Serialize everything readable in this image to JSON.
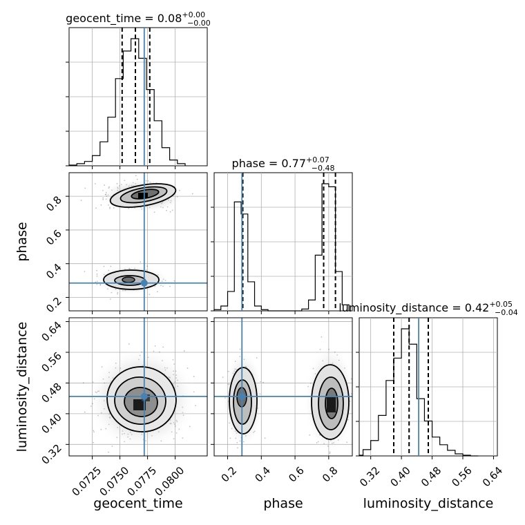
{
  "chart_data": {
    "type": "corner",
    "parameters": [
      "geocent_time",
      "phase",
      "luminosity_distance"
    ],
    "titles": [
      {
        "param": "geocent_time",
        "name": "geocent_time",
        "median": "0.08",
        "plus": "+0.00",
        "minus": "−0.00"
      },
      {
        "param": "phase",
        "name": "phase",
        "median": "0.77",
        "plus": "+0.07",
        "minus": "−0.48"
      },
      {
        "param": "luminosity_distance",
        "name": "luminosity_distance",
        "median": "0.42",
        "plus": "+0.05",
        "minus": "−0.04"
      }
    ],
    "xlabels": [
      "geocent_time",
      "phase",
      "luminosity_distance"
    ],
    "ylabels": [
      "phase",
      "luminosity_distance"
    ],
    "ranges": {
      "geocent_time": [
        0.0704,
        0.0829
      ],
      "phase": [
        0.12,
        0.94
      ],
      "luminosity_distance": [
        0.29,
        0.65
      ]
    },
    "ticks": {
      "geocent_time": [
        "0.0725",
        "0.0750",
        "0.0775",
        "0.0800"
      ],
      "phase": [
        "0.2",
        "0.4",
        "0.6",
        "0.8"
      ],
      "luminosity_distance": [
        "0.32",
        "0.40",
        "0.48",
        "0.56",
        "0.64"
      ]
    },
    "truths": {
      "geocent_time": 0.0772,
      "phase": 0.285,
      "luminosity_distance": 0.445
    },
    "quantiles": {
      "geocent_time": [
        0.0752,
        0.0764,
        0.0777
      ],
      "phase": [
        0.29,
        0.77,
        0.84
      ],
      "luminosity_distance": [
        0.38,
        0.42,
        0.47
      ]
    },
    "histograms": {
      "geocent_time": {
        "edges": [
          0.0704,
          0.0711,
          0.0718,
          0.0725,
          0.0732,
          0.0739,
          0.0746,
          0.0753,
          0.076,
          0.0767,
          0.0774,
          0.0781,
          0.0788,
          0.0795,
          0.0802,
          0.0809
        ],
        "counts": [
          1,
          3,
          6,
          14,
          33,
          67,
          120,
          158,
          175,
          148,
          105,
          62,
          25,
          8,
          3
        ]
      },
      "phase": {
        "edges": [
          0.12,
          0.16,
          0.2,
          0.24,
          0.28,
          0.32,
          0.36,
          0.4,
          0.44,
          0.48,
          0.52,
          0.56,
          0.6,
          0.64,
          0.68,
          0.72,
          0.76,
          0.8,
          0.84,
          0.88,
          0.92
        ],
        "counts": [
          2,
          8,
          32,
          180,
          160,
          48,
          8,
          2,
          0,
          0,
          0,
          0,
          0,
          3,
          18,
          92,
          210,
          205,
          65,
          10
        ]
      },
      "luminosity_distance": {
        "edges": [
          0.29,
          0.3,
          0.32,
          0.34,
          0.36,
          0.38,
          0.4,
          0.42,
          0.44,
          0.46,
          0.48,
          0.5,
          0.52,
          0.54,
          0.56,
          0.58,
          0.6
        ],
        "counts": [
          1,
          9,
          22,
          58,
          108,
          140,
          182,
          160,
          82,
          50,
          27,
          16,
          8,
          3,
          1,
          0
        ]
      }
    }
  }
}
